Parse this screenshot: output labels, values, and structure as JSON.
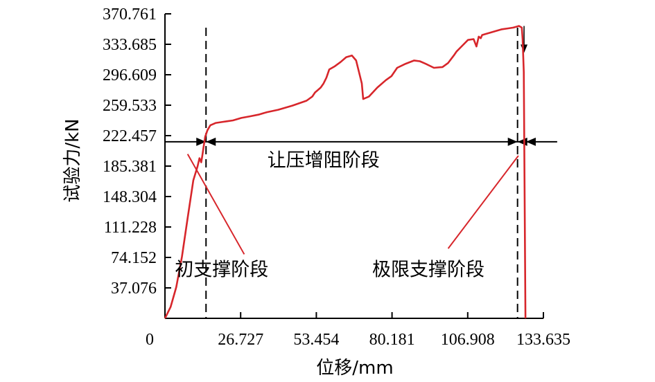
{
  "chart_data": {
    "type": "line",
    "xlabel": "位移/mm",
    "ylabel": "试验力/kN",
    "xlim": [
      0,
      133.635
    ],
    "ylim": [
      0,
      370.761
    ],
    "x_ticks": [
      "0",
      "26.727",
      "53.454",
      "80.181",
      "106.908",
      "133.635"
    ],
    "y_ticks": [
      "37.076",
      "74.152",
      "111.228",
      "148.304",
      "185.381",
      "222.457",
      "259.533",
      "296.609",
      "333.685",
      "370.761"
    ],
    "series": [
      {
        "color": "#d7262b",
        "x": [
          0,
          2,
          4,
          6,
          8,
          10,
          11.5,
          12.2,
          12.8,
          13.2,
          13.6,
          14.2,
          15,
          16,
          18,
          20,
          22,
          24,
          27,
          30,
          33,
          36,
          40,
          45,
          50,
          52,
          53,
          54,
          55,
          56,
          57,
          58,
          60,
          62,
          64,
          66,
          67.5,
          68.5,
          69.5,
          70,
          72,
          75,
          78,
          80,
          82,
          85,
          88,
          90,
          92,
          95,
          98,
          100,
          102,
          103,
          105,
          107,
          109,
          110,
          110.8,
          111.5,
          112,
          113,
          115,
          117,
          119,
          121,
          123,
          124,
          125,
          126,
          126.3,
          126.7,
          127,
          127.3
        ],
        "y": [
          0,
          14,
          38,
          75,
          122,
          168,
          185,
          195,
          190,
          198,
          208,
          221,
          229,
          235,
          238,
          239,
          240,
          241,
          244,
          246,
          248,
          251,
          254,
          259,
          265,
          270,
          275,
          278,
          281,
          286,
          293,
          303,
          307,
          312,
          318,
          320,
          314,
          300,
          286,
          267,
          270,
          281,
          290,
          295,
          305,
          310,
          314,
          313,
          310,
          305,
          306,
          311,
          320,
          325,
          332,
          339,
          340,
          331,
          343,
          341,
          345,
          346,
          348,
          350,
          352,
          353,
          354,
          355,
          356,
          354,
          340,
          300,
          150,
          0
        ]
      }
    ],
    "vlines_x": [
      14.5,
      124.5
    ],
    "span": {
      "y": 215,
      "x_start": 0,
      "x_end": 138.5,
      "marks": [
        14.5,
        124.5,
        127.5
      ]
    },
    "annotations": [
      {
        "text": "让压增阻阶段",
        "x": 56,
        "y": 185
      },
      {
        "text": "初支撑阶段",
        "x": 20,
        "y": 52,
        "pointer_from": [
          28,
          78
        ],
        "pointer_to": [
          8,
          200
        ]
      },
      {
        "text": "极限支撑阶段",
        "x": 93,
        "y": 52,
        "pointer_from": [
          100,
          85
        ],
        "pointer_to": [
          124.8,
          198
        ]
      }
    ]
  }
}
